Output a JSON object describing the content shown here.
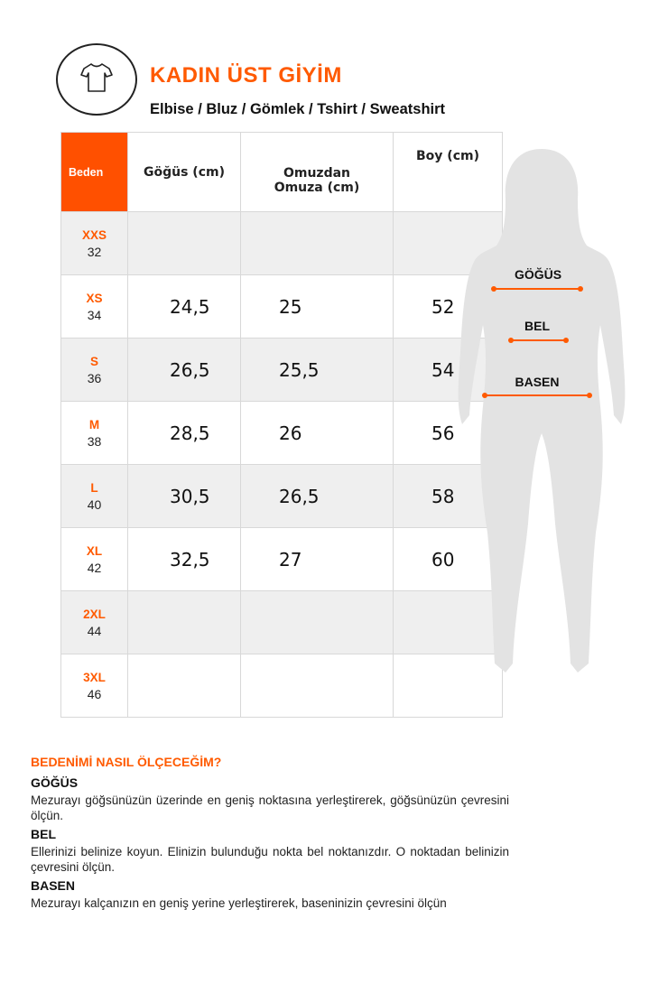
{
  "header": {
    "icon": "tshirt-icon",
    "title": "KADIN ÜST GİYİM",
    "subtitle": "Elbise / Bluz / Gömlek / Tshirt / Sweatshirt"
  },
  "table": {
    "columns": [
      "Beden",
      "Göğüs (cm)",
      "Omuzdan Omuza (cm)",
      "Boy (cm)"
    ],
    "rows": [
      {
        "size": "XXS",
        "num": "32",
        "chest": "",
        "shoulder": "",
        "length": ""
      },
      {
        "size": "XS",
        "num": "34",
        "chest": "24,5",
        "shoulder": "25",
        "length": "52"
      },
      {
        "size": "S",
        "num": "36",
        "chest": "26,5",
        "shoulder": "25,5",
        "length": "54"
      },
      {
        "size": "M",
        "num": "38",
        "chest": "28,5",
        "shoulder": "26",
        "length": "56"
      },
      {
        "size": "L",
        "num": "40",
        "chest": "30,5",
        "shoulder": "26,5",
        "length": "58"
      },
      {
        "size": "XL",
        "num": "42",
        "chest": "32,5",
        "shoulder": "27",
        "length": "60"
      },
      {
        "size": "2XL",
        "num": "44",
        "chest": "",
        "shoulder": "",
        "length": ""
      },
      {
        "size": "3XL",
        "num": "46",
        "chest": "",
        "shoulder": "",
        "length": ""
      }
    ]
  },
  "figure": {
    "labels": [
      "GÖĞÜS",
      "BEL",
      "BASEN"
    ]
  },
  "howto": {
    "title": "BEDENİMİ NASIL ÖLÇECEĞİM?",
    "sections": [
      {
        "heading": "GÖĞÜS",
        "text": "Mezurayı göğsünüzün üzerinde en geniş noktasına yerleştirerek, göğsünüzün çevresini ölçün."
      },
      {
        "heading": "BEL",
        "text": "Ellerinizi belinize koyun. Elinizin bulunduğu nokta bel noktanızdır. O noktadan belinizin çevresini ölçün."
      },
      {
        "heading": "BASEN",
        "text": "Mezurayı kalçanızın en geniş yerine yerleştirerek, baseninizin çevresini ölçün"
      }
    ]
  },
  "colors": {
    "accent": "#ff5a00",
    "silhouette": "#e3e3e3",
    "row_alt": "#efefef"
  }
}
